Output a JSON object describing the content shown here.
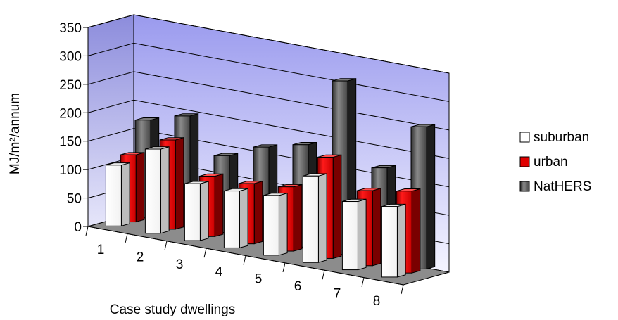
{
  "chart_data": {
    "type": "bar",
    "style": "3d-clustered-column",
    "xlabel": "Case study dwellings",
    "ylabel": "MJ/m²/annum",
    "ylim": [
      0,
      350
    ],
    "yticks": [
      "0",
      "50",
      "100",
      "150",
      "200",
      "250",
      "300",
      "350"
    ],
    "categories": [
      "1",
      "2",
      "3",
      "4",
      "5",
      "6",
      "7",
      "8"
    ],
    "grid": true,
    "legend_position": "right",
    "series": [
      {
        "name": "suburban",
        "color": "#ffffff",
        "values": [
          107,
          148,
          100,
          100,
          105,
          152,
          120,
          124
        ]
      },
      {
        "name": "urban",
        "color": "#dd0000",
        "values": [
          118,
          157,
          106,
          106,
          113,
          178,
          132,
          144
        ]
      },
      {
        "name": "NatHERS",
        "color": "#555555",
        "values": [
          172,
          192,
          135,
          163,
          180,
          305,
          165,
          250
        ]
      }
    ],
    "colors": {
      "back_wall": "#ccccff",
      "side_wall": "#b4b4ee",
      "floor": "#8c8c8c",
      "gridline": "#000000"
    }
  }
}
